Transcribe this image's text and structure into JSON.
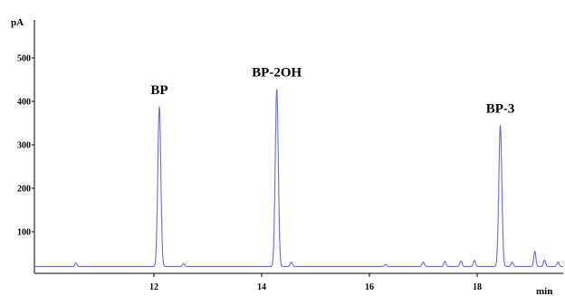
{
  "chart_data": {
    "type": "line",
    "title": "",
    "ylabel": "pA",
    "xlabel": "min",
    "xlim": [
      10.0,
      20.0
    ],
    "ylim": [
      0,
      540
    ],
    "x_ticks": [
      12,
      14,
      16,
      18
    ],
    "y_ticks": [
      100,
      200,
      300,
      400,
      500
    ],
    "grid": false,
    "line_color": "#6a6ad6",
    "baseline": 20,
    "peaks": [
      {
        "label": "BP",
        "x": 12.1,
        "y": 388
      },
      {
        "label": "BP-2OH",
        "x": 14.28,
        "y": 428
      },
      {
        "label": "BP-3",
        "x": 18.43,
        "y": 345
      }
    ],
    "minor_peaks": [
      {
        "x": 10.55,
        "y": 28
      },
      {
        "x": 12.55,
        "y": 27
      },
      {
        "x": 14.55,
        "y": 30
      },
      {
        "x": 16.3,
        "y": 25
      },
      {
        "x": 17.0,
        "y": 30
      },
      {
        "x": 17.4,
        "y": 32
      },
      {
        "x": 17.7,
        "y": 33
      },
      {
        "x": 17.95,
        "y": 34
      },
      {
        "x": 18.65,
        "y": 30
      },
      {
        "x": 19.07,
        "y": 55
      },
      {
        "x": 19.25,
        "y": 35
      },
      {
        "x": 19.5,
        "y": 30
      }
    ]
  }
}
